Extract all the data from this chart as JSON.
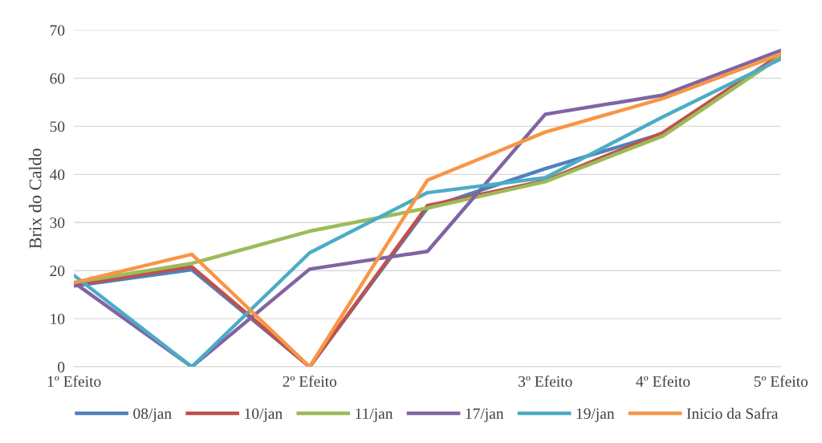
{
  "chart_data": {
    "type": "line",
    "ylabel": "Brix do Caldo",
    "categories": [
      "1º Efeito",
      null,
      "2º Efeito",
      null,
      "3º Efeito",
      "4º Efeito",
      "5º Efeito"
    ],
    "series": [
      {
        "name": "08/jan",
        "color": "#4f81bd",
        "values": [
          16.8,
          20.2,
          0,
          33,
          41.2,
          48.5,
          64.5
        ]
      },
      {
        "name": "10/jan",
        "color": "#c0504d",
        "values": [
          17,
          20.8,
          0,
          33.5,
          38.7,
          48.7,
          65
        ]
      },
      {
        "name": "11/jan",
        "color": "#9bbb59",
        "values": [
          17.5,
          21.5,
          28.2,
          33,
          38.5,
          48,
          64.5
        ]
      },
      {
        "name": "17/jan",
        "color": "#8064a2",
        "values": [
          17.5,
          0,
          20.3,
          24,
          52.5,
          56.5,
          65.8
        ]
      },
      {
        "name": "19/jan",
        "color": "#4bacc6",
        "values": [
          19,
          0,
          23.7,
          36.2,
          39.3,
          52,
          64
        ]
      },
      {
        "name": "Inicio da Safra",
        "color": "#f79646",
        "values": [
          17.5,
          23.4,
          0,
          38.8,
          48.8,
          55.8,
          65
        ]
      }
    ],
    "ylim": [
      0,
      70
    ],
    "yticks": [
      0,
      10,
      20,
      30,
      40,
      50,
      60,
      70
    ],
    "grid": "y",
    "legend": "bottom",
    "marker": "none",
    "line_style": "solid"
  }
}
